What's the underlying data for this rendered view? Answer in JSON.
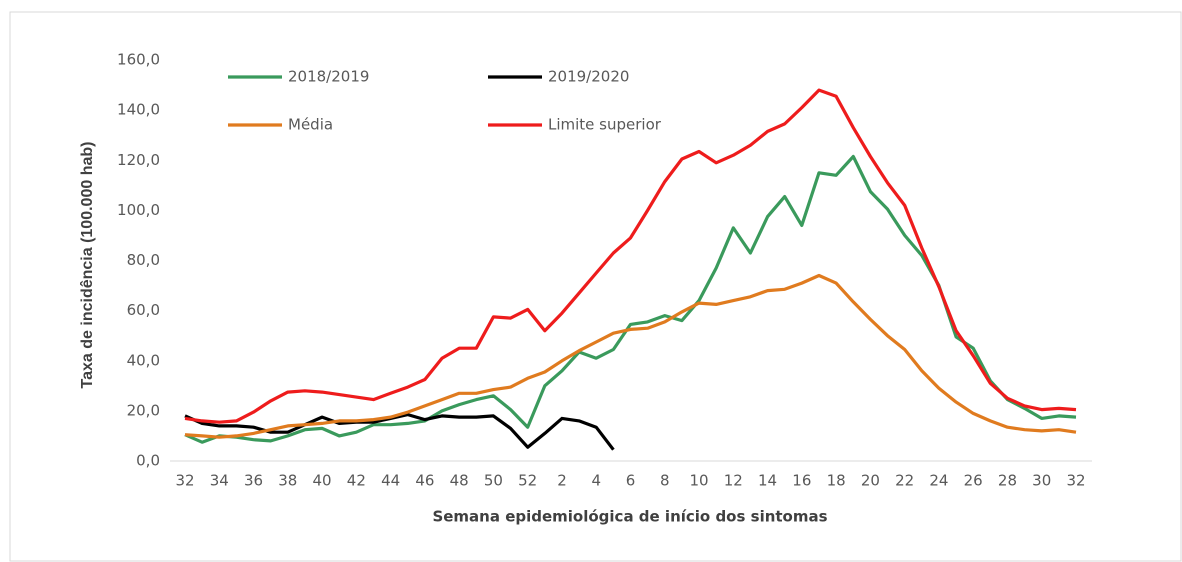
{
  "chart_data": {
    "type": "line",
    "y_label": "Taxa de incidência (100.000 hab)",
    "x_label": "Semana epidemiológica de início dos sintomas",
    "categories": [
      "32",
      null,
      "34",
      null,
      "36",
      null,
      "38",
      null,
      "40",
      null,
      "42",
      null,
      "44",
      null,
      "46",
      null,
      "48",
      null,
      "50",
      null,
      "52",
      null,
      "2",
      null,
      "4",
      null,
      "6",
      null,
      "8",
      null,
      "10",
      null,
      "12",
      null,
      "14",
      null,
      "16",
      null,
      "18",
      null,
      "20",
      null,
      "22",
      null,
      "24",
      null,
      "26",
      null,
      "28",
      null,
      "30",
      null,
      "32"
    ],
    "ylim": [
      0,
      160
    ],
    "yticks": [
      {
        "value": 0,
        "label": "0,0"
      },
      {
        "value": 20,
        "label": "20,0"
      },
      {
        "value": 40,
        "label": "40,0"
      },
      {
        "value": 60,
        "label": "60,0"
      },
      {
        "value": 80,
        "label": "80,0"
      },
      {
        "value": 100,
        "label": "100,0"
      },
      {
        "value": 120,
        "label": "120,0"
      },
      {
        "value": 140,
        "label": "140,0"
      },
      {
        "value": 160,
        "label": "160,0"
      }
    ],
    "grid": false,
    "series": [
      {
        "name": "2018/2019",
        "color": "#3a9a5c",
        "values": [
          10.5,
          7.5,
          10,
          9.5,
          8.5,
          8,
          10,
          12.5,
          13,
          10,
          11.5,
          14.5,
          14.5,
          15,
          16,
          20,
          22.5,
          24.5,
          26,
          20.5,
          13.5,
          30,
          36,
          43.5,
          41,
          44.5,
          54.5,
          55.5,
          58,
          56,
          64,
          77,
          93,
          83,
          97.5,
          105.5,
          94,
          115,
          114,
          121.5,
          107.5,
          100.5,
          90,
          82,
          70,
          49.5,
          45,
          32,
          24.5,
          21,
          17,
          18,
          17.5
        ]
      },
      {
        "name": "2019/2020",
        "color": "#000000",
        "values": [
          18,
          15,
          14,
          14,
          13.5,
          11.5,
          11.5,
          14.5,
          17.5,
          15,
          15.5,
          15.5,
          17,
          18.5,
          16.5,
          18,
          17.5,
          17.5,
          18,
          13,
          5.5,
          11,
          17,
          16,
          13.5,
          4.5,
          null,
          null,
          null,
          null,
          null,
          null,
          null,
          null,
          null,
          null,
          null,
          null,
          null,
          null,
          null,
          null,
          null,
          null,
          null,
          null,
          null,
          null,
          null,
          null,
          null,
          null,
          null
        ]
      },
      {
        "name": "Média",
        "color": "#e07b1f",
        "values": [
          10.5,
          10,
          9.5,
          10,
          11,
          12.5,
          14,
          14.5,
          15,
          16,
          16,
          16.5,
          17.5,
          19.5,
          22,
          24.5,
          27,
          27,
          28.5,
          29.5,
          33,
          35.5,
          40,
          44,
          47.5,
          51,
          52.5,
          53,
          55.5,
          59.5,
          63,
          62.5,
          64,
          65.5,
          68,
          68.5,
          71,
          74,
          71,
          63.5,
          56.5,
          50,
          44.5,
          36,
          29,
          23.5,
          19,
          16,
          13.5,
          12.5,
          12,
          12.5,
          11.5
        ]
      },
      {
        "name": "Limite superior",
        "color": "#ee1c1c",
        "values": [
          17,
          16,
          15.5,
          16,
          19.5,
          24,
          27.5,
          28,
          27.5,
          26.5,
          25.5,
          24.5,
          27,
          29.5,
          32.5,
          41,
          45,
          45,
          57.5,
          57,
          60.5,
          52,
          59,
          67,
          75,
          83,
          89,
          100,
          111.5,
          120.5,
          123.5,
          119,
          122,
          126,
          131.5,
          134.5,
          141,
          148,
          145.5,
          133,
          121.5,
          111,
          102,
          85,
          69.5,
          52,
          42,
          31,
          25,
          22,
          20.5,
          21,
          20.5
        ]
      }
    ]
  }
}
